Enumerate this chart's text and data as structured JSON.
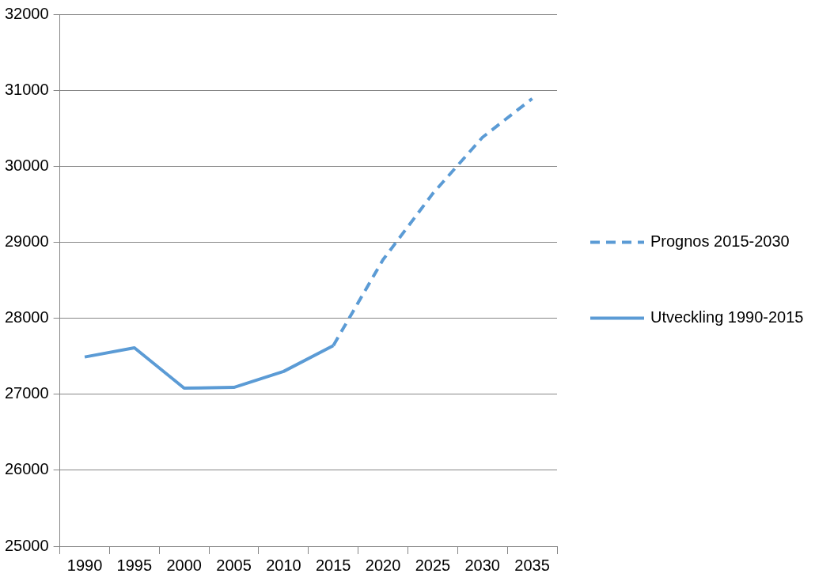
{
  "chart_data": {
    "type": "line",
    "categories": [
      "1990",
      "1995",
      "2000",
      "2005",
      "2010",
      "2015",
      "2020",
      "2025",
      "2030",
      "2035"
    ],
    "series": [
      {
        "name": "Prognos 2015-2030",
        "color": "#5b9bd5",
        "line_style": "dashed",
        "values": [
          null,
          null,
          null,
          null,
          null,
          27640,
          28770,
          29640,
          30380,
          30890
        ]
      },
      {
        "name": "Utveckling 1990-2015",
        "color": "#5b9bd5",
        "line_style": "solid",
        "values": [
          27490,
          27610,
          27080,
          27090,
          27300,
          27640,
          null,
          null,
          null,
          null
        ]
      }
    ],
    "ylim": [
      25000,
      32000
    ],
    "yticks": [
      25000,
      26000,
      27000,
      28000,
      29000,
      30000,
      31000,
      32000
    ],
    "grid": "y",
    "legend": "right",
    "marker": "none"
  }
}
